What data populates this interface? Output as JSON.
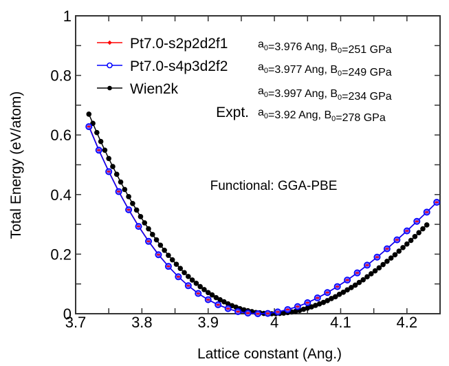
{
  "chart_data": {
    "type": "line",
    "title": "",
    "xlabel": "Lattice constant (Ang.)",
    "ylabel": "Total Energy (eV/atom)",
    "xlim": [
      3.7,
      4.25
    ],
    "ylim": [
      0,
      1
    ],
    "xticks": [
      3.7,
      3.8,
      3.9,
      4.0,
      4.1,
      4.2
    ],
    "xtick_labels": [
      "3.7",
      "3.8",
      "3.9",
      "4",
      "4.1",
      "4.2"
    ],
    "xminor": [
      3.75,
      3.85,
      3.95,
      4.05,
      4.15
    ],
    "yticks": [
      0,
      0.2,
      0.4,
      0.6,
      0.8,
      1.0
    ],
    "ytick_labels": [
      "0",
      "0.2",
      "0.4",
      "0.6",
      "0.8",
      "1"
    ],
    "yminor": [
      0.1,
      0.3,
      0.5,
      0.7,
      0.9
    ],
    "grid": false,
    "legend_position": "top-left",
    "annotation": "Functional: GGA-PBE",
    "series": [
      {
        "name": "Pt7.0-s2p2d2f1",
        "color": "#ff0000",
        "marker": "filled-diamond-small",
        "fit": "a0=3.976 Ang, B0=251 GPa",
        "x": [
          3.72,
          3.735,
          3.75,
          3.765,
          3.78,
          3.795,
          3.81,
          3.825,
          3.84,
          3.855,
          3.87,
          3.885,
          3.9,
          3.915,
          3.93,
          3.945,
          3.96,
          3.975,
          3.99,
          4.005,
          4.02,
          4.035,
          4.05,
          4.065,
          4.08,
          4.095,
          4.11,
          4.125,
          4.14,
          4.155,
          4.17,
          4.185,
          4.2,
          4.215,
          4.23,
          4.245
        ],
        "y": [
          0.63,
          0.55,
          0.478,
          0.411,
          0.35,
          0.294,
          0.244,
          0.199,
          0.159,
          0.124,
          0.094,
          0.068,
          0.047,
          0.03,
          0.017,
          0.007,
          0.002,
          0.0,
          0.001,
          0.006,
          0.014,
          0.024,
          0.037,
          0.053,
          0.071,
          0.091,
          0.113,
          0.137,
          0.163,
          0.19,
          0.218,
          0.248,
          0.278,
          0.31,
          0.341,
          0.374
        ]
      },
      {
        "name": "Pt7.0-s4p3d2f2",
        "color": "#0000ff",
        "marker": "open-circle",
        "fit": "a0=3.977 Ang, B0=249 GPa",
        "x": [
          3.72,
          3.735,
          3.75,
          3.765,
          3.78,
          3.795,
          3.81,
          3.825,
          3.84,
          3.855,
          3.87,
          3.885,
          3.9,
          3.915,
          3.93,
          3.945,
          3.96,
          3.975,
          3.99,
          4.005,
          4.02,
          4.035,
          4.05,
          4.065,
          4.08,
          4.095,
          4.11,
          4.125,
          4.14,
          4.155,
          4.17,
          4.185,
          4.2,
          4.215,
          4.23,
          4.245
        ],
        "y": [
          0.628,
          0.549,
          0.477,
          0.41,
          0.349,
          0.293,
          0.243,
          0.198,
          0.159,
          0.124,
          0.094,
          0.068,
          0.047,
          0.03,
          0.017,
          0.007,
          0.002,
          0.0,
          0.001,
          0.006,
          0.014,
          0.024,
          0.037,
          0.053,
          0.071,
          0.091,
          0.113,
          0.137,
          0.163,
          0.19,
          0.218,
          0.248,
          0.278,
          0.31,
          0.341,
          0.374
        ]
      },
      {
        "name": "Wien2k",
        "color": "#000000",
        "marker": "filled-circle",
        "fit": "a0=3.997 Ang, B0=234 GPa",
        "x": [
          3.72,
          3.726,
          3.732,
          3.738,
          3.744,
          3.75,
          3.756,
          3.762,
          3.768,
          3.774,
          3.78,
          3.786,
          3.792,
          3.798,
          3.804,
          3.81,
          3.816,
          3.822,
          3.828,
          3.834,
          3.84,
          3.846,
          3.852,
          3.858,
          3.864,
          3.87,
          3.876,
          3.882,
          3.888,
          3.894,
          3.9,
          3.906,
          3.912,
          3.918,
          3.924,
          3.93,
          3.936,
          3.942,
          3.948,
          3.954,
          3.96,
          3.966,
          3.972,
          3.978,
          3.984,
          3.99,
          3.996,
          4.002,
          4.008,
          4.014,
          4.02,
          4.026,
          4.032,
          4.038,
          4.044,
          4.05,
          4.056,
          4.062,
          4.068,
          4.074,
          4.08,
          4.086,
          4.092,
          4.098,
          4.104,
          4.11,
          4.116,
          4.122,
          4.128,
          4.134,
          4.14,
          4.146,
          4.152,
          4.158,
          4.164,
          4.17,
          4.176,
          4.182,
          4.188,
          4.194,
          4.2,
          4.206,
          4.212,
          4.218,
          4.224,
          4.23
        ],
        "y": [
          0.67,
          0.639,
          0.608,
          0.578,
          0.549,
          0.521,
          0.494,
          0.468,
          0.442,
          0.417,
          0.393,
          0.37,
          0.348,
          0.326,
          0.305,
          0.285,
          0.266,
          0.248,
          0.23,
          0.213,
          0.196,
          0.181,
          0.166,
          0.152,
          0.138,
          0.125,
          0.113,
          0.102,
          0.091,
          0.081,
          0.071,
          0.063,
          0.054,
          0.047,
          0.04,
          0.033,
          0.027,
          0.022,
          0.017,
          0.013,
          0.01,
          0.007,
          0.004,
          0.003,
          0.001,
          0.0,
          0.0,
          0.0,
          0.001,
          0.002,
          0.004,
          0.006,
          0.008,
          0.011,
          0.015,
          0.019,
          0.023,
          0.028,
          0.033,
          0.038,
          0.044,
          0.051,
          0.057,
          0.065,
          0.072,
          0.08,
          0.088,
          0.096,
          0.105,
          0.114,
          0.124,
          0.134,
          0.144,
          0.154,
          0.165,
          0.176,
          0.187,
          0.198,
          0.21,
          0.222,
          0.234,
          0.246,
          0.259,
          0.272,
          0.285,
          0.298
        ]
      }
    ],
    "expt": {
      "label": "Expt.",
      "fit": "a0=3.92  Ang, B0=278 GPa"
    }
  },
  "legend": {
    "items": [
      {
        "label": "Pt7.0-s2p2d2f1",
        "a0": "3.976",
        "b0": "251"
      },
      {
        "label": "Pt7.0-s4p3d2f2",
        "a0": "3.977",
        "b0": "249"
      },
      {
        "label": "Wien2k",
        "a0": "3.997",
        "b0": "234"
      }
    ],
    "expt": {
      "label": "Expt.",
      "a0": "3.92 ",
      "b0": "278"
    },
    "a_prefix": "a",
    "a_sub": "0",
    "b_prefix": "B",
    "b_sub": "0",
    "ang_text": "=",
    "ang_unit": " Ang, ",
    "gpa_unit": "=",
    "gpa_suffix": " GPa"
  }
}
